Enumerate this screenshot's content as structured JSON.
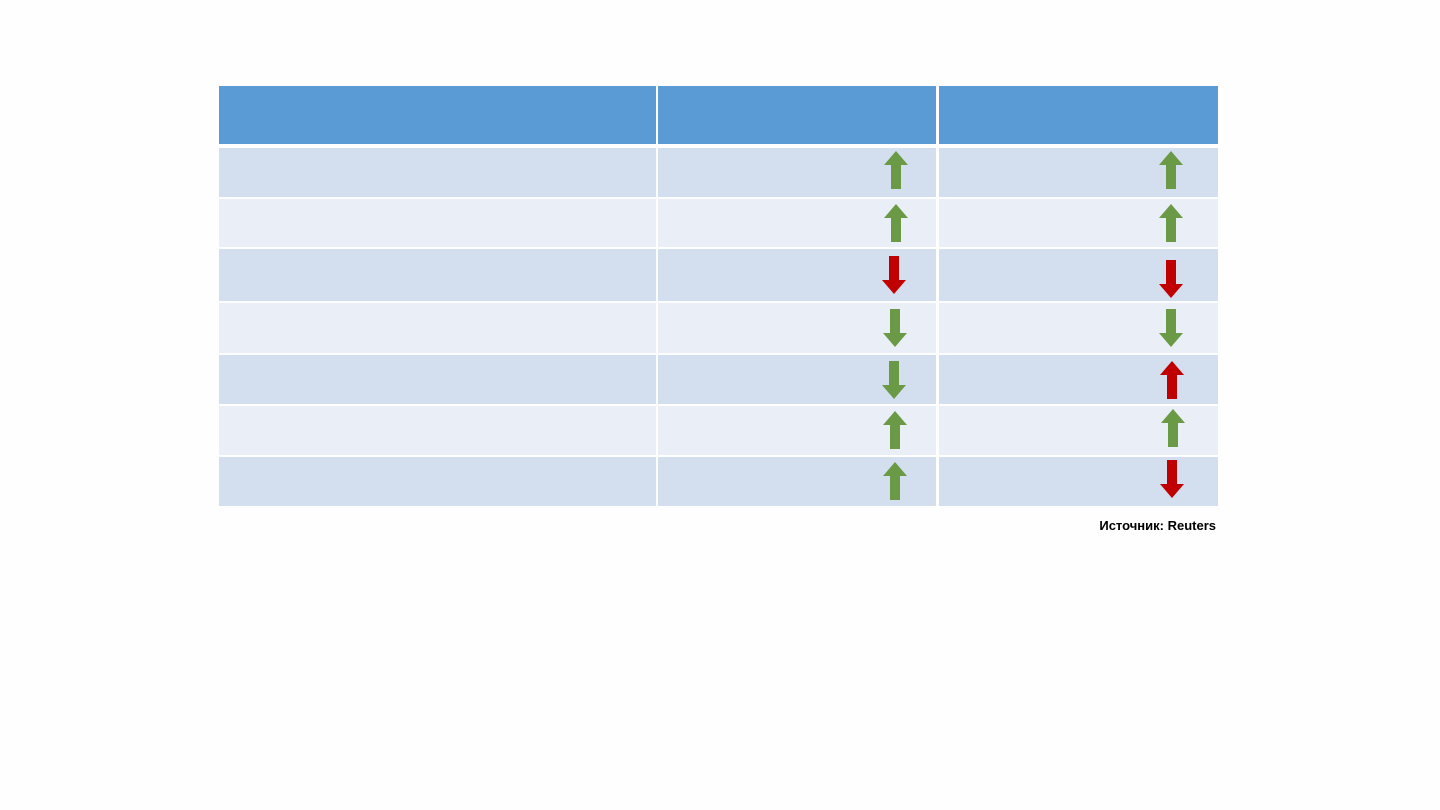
{
  "source": "Источник: Reuters"
}
